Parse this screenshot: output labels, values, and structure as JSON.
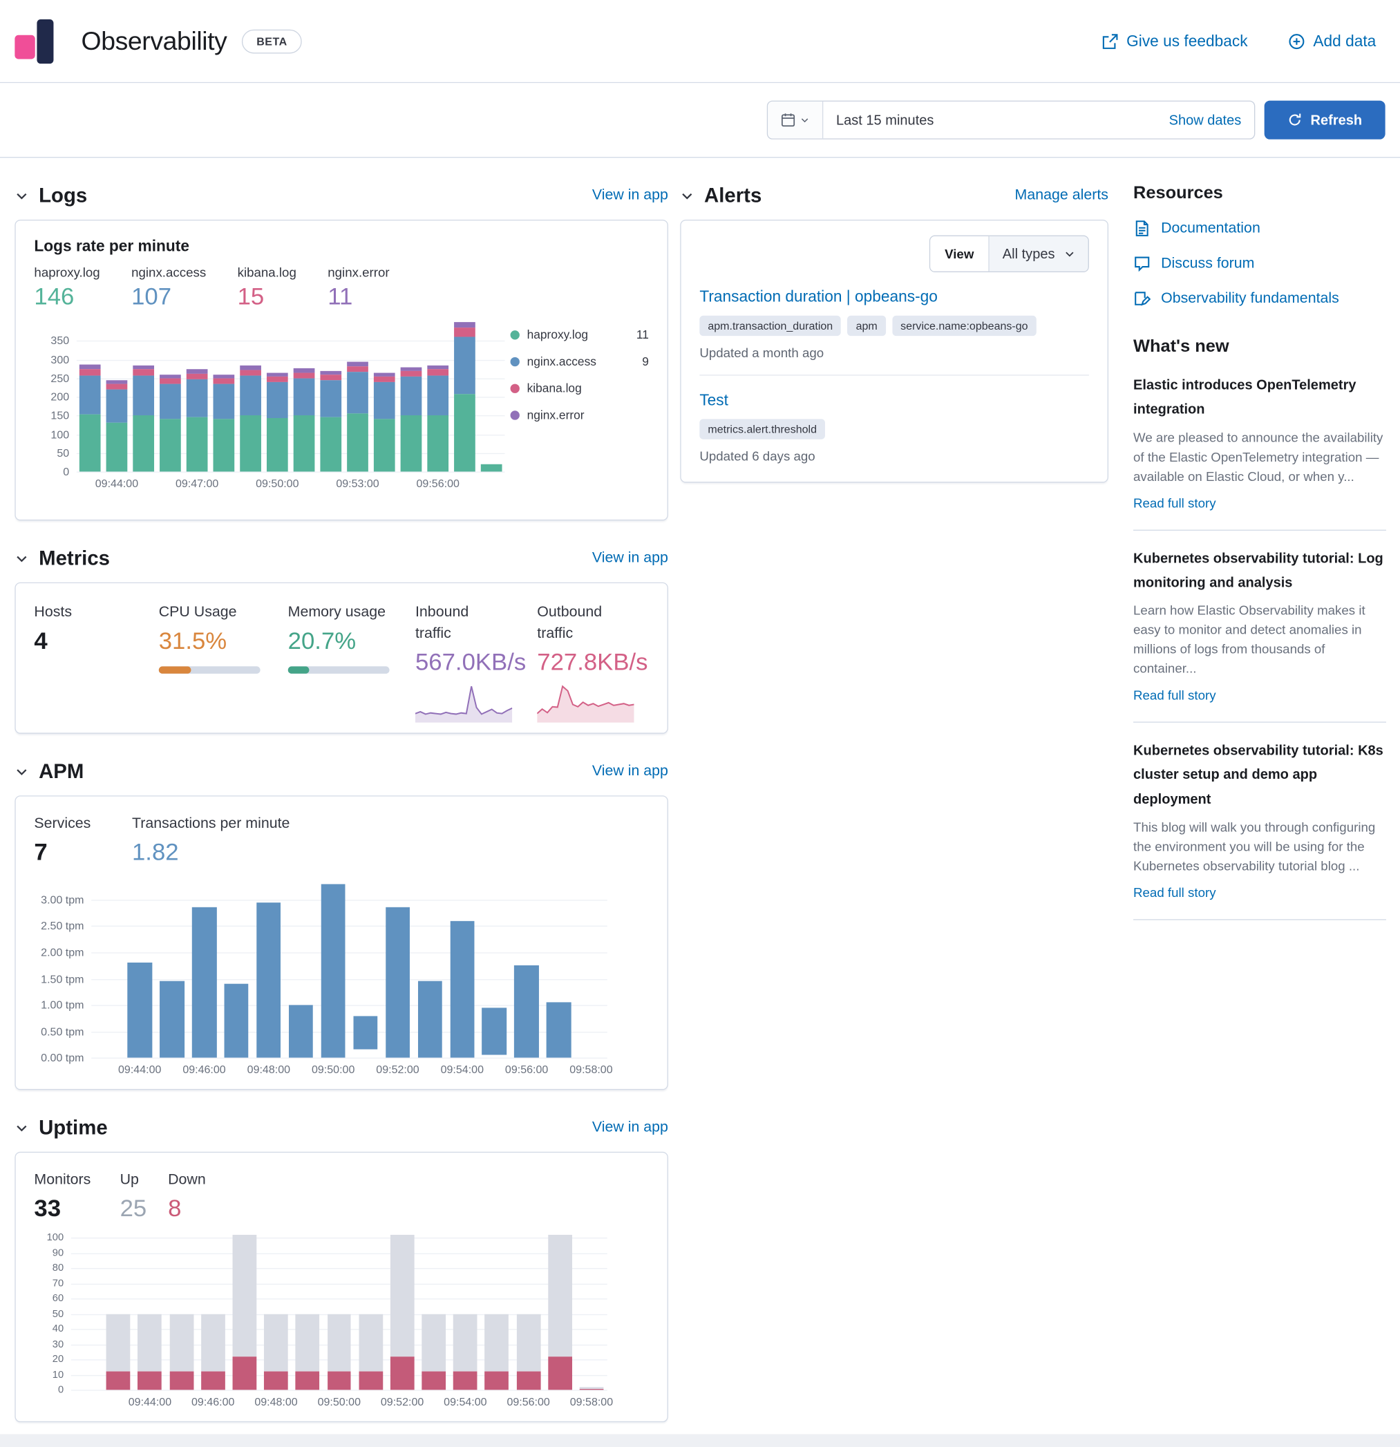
{
  "colors": {
    "link": "#006BB4",
    "primary_button": "#2B6CBF",
    "text": "#343741",
    "heading": "#1A1C21",
    "subdued": "#69707D",
    "border": "#D3DAE6"
  },
  "header": {
    "app_title": "Observability",
    "beta_badge": "BETA",
    "feedback_link": "Give us feedback",
    "add_data_link": "Add data"
  },
  "toolbar": {
    "time_range_value": "Last 15 minutes",
    "show_dates_link": "Show dates",
    "refresh_button": "Refresh"
  },
  "logs": {
    "section_title": "Logs",
    "view_in_app": "View in app",
    "panel_title": "Logs rate per minute",
    "stats": [
      {
        "label": "haproxy.log",
        "value": "146",
        "color": "#54B399"
      },
      {
        "label": "nginx.access",
        "value": "107",
        "color": "#6092C0"
      },
      {
        "label": "kibana.log",
        "value": "15",
        "color": "#D36086"
      },
      {
        "label": "nginx.error",
        "value": "11",
        "color": "#9170B8"
      }
    ],
    "legend": [
      {
        "label": "haproxy.log",
        "value": "11",
        "color": "#54B399"
      },
      {
        "label": "nginx.access",
        "value": "9",
        "color": "#6092C0"
      },
      {
        "label": "kibana.log",
        "value": "",
        "color": "#D36086"
      },
      {
        "label": "nginx.error",
        "value": "",
        "color": "#9170B8"
      }
    ]
  },
  "metrics": {
    "section_title": "Metrics",
    "view_in_app": "View in app",
    "stats": [
      {
        "label": "Hosts",
        "value": "4",
        "color": "#1A1C21"
      },
      {
        "label": "CPU Usage",
        "value": "31.5%",
        "color": "#D9863D",
        "percent": 31.5
      },
      {
        "label": "Memory usage",
        "value": "20.7%",
        "color": "#44A488",
        "percent": 20.7
      },
      {
        "label": "Inbound traffic",
        "value": "567.0KB/s",
        "color": "#9170B8"
      },
      {
        "label": "Outbound traffic",
        "value": "727.8KB/s",
        "color": "#D36086"
      }
    ]
  },
  "apm": {
    "section_title": "APM",
    "view_in_app": "View in app",
    "services_label": "Services",
    "services_value": "7",
    "tpm_label": "Transactions per minute",
    "tpm_value": "1.82",
    "tpm_color": "#6092C0"
  },
  "uptime": {
    "section_title": "Uptime",
    "view_in_app": "View in app",
    "stats": [
      {
        "label": "Monitors",
        "value": "33",
        "color": "#1A1C21"
      },
      {
        "label": "Up",
        "value": "25",
        "color": "#9BA5B2"
      },
      {
        "label": "Down",
        "value": "8",
        "color": "#CB5B78"
      }
    ]
  },
  "alerts": {
    "section_title": "Alerts",
    "manage_link": "Manage alerts",
    "view_label": "View",
    "type_filter": "All types",
    "items": [
      {
        "title": "Transaction duration | opbeans-go",
        "tags": [
          "apm.transaction_duration",
          "apm",
          "service.name:opbeans-go"
        ],
        "updated": "Updated a month ago"
      },
      {
        "title": "Test",
        "tags": [
          "metrics.alert.threshold"
        ],
        "updated": "Updated 6 days ago"
      }
    ]
  },
  "resources": {
    "title": "Resources",
    "links": [
      {
        "label": "Documentation"
      },
      {
        "label": "Discuss forum"
      },
      {
        "label": "Observability fundamentals"
      }
    ]
  },
  "whats_new": {
    "title": "What's new",
    "read_more": "Read full story",
    "stories": [
      {
        "title": "Elastic introduces OpenTelemetry integration",
        "body": "We are pleased to announce the availability of the Elastic OpenTelemetry integration — available on Elastic Cloud, or when y..."
      },
      {
        "title": "Kubernetes observability tutorial: Log monitoring and analysis",
        "body": "Learn how Elastic Observability makes it easy to monitor and detect anomalies in millions of logs from thousands of container..."
      },
      {
        "title": "Kubernetes observability tutorial: K8s cluster setup and demo app deployment",
        "body": "This blog will walk you through configuring the environment you will be using for the Kubernetes observability tutorial blog ..."
      }
    ]
  },
  "chart_data": [
    {
      "id": "logs-rate",
      "type": "bar",
      "stacked": true,
      "title": "Logs rate per minute",
      "ymax": 410,
      "yticks": [
        {
          "v": 0,
          "label": "0"
        },
        {
          "v": 50,
          "label": "50"
        },
        {
          "v": 100,
          "label": "100"
        },
        {
          "v": 150,
          "label": "150"
        },
        {
          "v": 200,
          "label": "200"
        },
        {
          "v": 250,
          "label": "250"
        },
        {
          "v": 300,
          "label": "300"
        },
        {
          "v": 350,
          "label": "350"
        }
      ],
      "xtick_labels": [
        "09:44:00",
        "09:47:00",
        "09:50:00",
        "09:53:00",
        "09:56:00"
      ],
      "xtick_index": [
        1,
        4,
        7,
        10,
        13
      ],
      "series": [
        {
          "name": "haproxy.log",
          "color": "#54B399",
          "values": [
            152,
            132,
            150,
            140,
            146,
            140,
            150,
            144,
            150,
            146,
            156,
            142,
            150,
            150,
            208,
            20
          ]
        },
        {
          "name": "nginx.access",
          "color": "#6092C0",
          "values": [
            105,
            88,
            108,
            94,
            102,
            94,
            106,
            96,
            100,
            98,
            110,
            98,
            104,
            108,
            152,
            0
          ]
        },
        {
          "name": "kibana.log",
          "color": "#D36086",
          "values": [
            18,
            15,
            16,
            15,
            15,
            15,
            16,
            15,
            15,
            15,
            16,
            15,
            15,
            15,
            25,
            0
          ]
        },
        {
          "name": "nginx.error",
          "color": "#9170B8",
          "values": [
            12,
            10,
            11,
            10,
            11,
            11,
            12,
            10,
            11,
            10,
            12,
            10,
            11,
            11,
            16,
            0
          ]
        }
      ]
    },
    {
      "id": "apm-tpm",
      "type": "bar",
      "stacked": false,
      "title": "Transactions per minute",
      "ymax": 3.45,
      "yticks": [
        {
          "v": 0,
          "label": "0.00 tpm"
        },
        {
          "v": 0.5,
          "label": "0.50 tpm"
        },
        {
          "v": 1,
          "label": "1.00 tpm"
        },
        {
          "v": 1.5,
          "label": "1.50 tpm"
        },
        {
          "v": 2,
          "label": "2.00 tpm"
        },
        {
          "v": 2.5,
          "label": "2.50 tpm"
        },
        {
          "v": 3,
          "label": "3.00 tpm"
        }
      ],
      "xtick_labels": [
        "09:44:00",
        "09:46:00",
        "09:48:00",
        "09:50:00",
        "09:52:00",
        "09:54:00",
        "09:56:00",
        "09:58:00"
      ],
      "xtick_index": [
        1,
        3,
        5,
        7,
        9,
        11,
        13,
        15
      ],
      "series": [
        {
          "name": "Transactions per minute",
          "color": "#6092C0",
          "values": [
            0,
            1.8,
            1.45,
            2.85,
            1.4,
            2.95,
            1.0,
            3.3,
            0.8,
            2.85,
            1.45,
            2.6,
            0.95,
            1.75,
            1.05,
            0
          ]
        }
      ]
    },
    {
      "id": "uptime-monitors",
      "type": "bar",
      "stacked": true,
      "title": "Monitors up / down",
      "ymax": 105,
      "yticks": [
        {
          "v": 0,
          "label": "0"
        },
        {
          "v": 10,
          "label": "10"
        },
        {
          "v": 20,
          "label": "20"
        },
        {
          "v": 30,
          "label": "30"
        },
        {
          "v": 40,
          "label": "40"
        },
        {
          "v": 50,
          "label": "50"
        },
        {
          "v": 60,
          "label": "60"
        },
        {
          "v": 70,
          "label": "70"
        },
        {
          "v": 80,
          "label": "80"
        },
        {
          "v": 90,
          "label": "90"
        },
        {
          "v": 100,
          "label": "100"
        }
      ],
      "xtick_labels": [
        "09:44:00",
        "09:46:00",
        "09:48:00",
        "09:50:00",
        "09:52:00",
        "09:54:00",
        "09:56:00",
        "09:58:00"
      ],
      "xtick_index": [
        2,
        4,
        6,
        8,
        10,
        12,
        14,
        16
      ],
      "series": [
        {
          "name": "Down",
          "color": "#C45B79",
          "values": [
            0,
            12,
            12,
            12,
            12,
            22,
            12,
            12,
            12,
            12,
            22,
            12,
            12,
            12,
            12,
            22,
            1
          ]
        },
        {
          "name": "Up",
          "color": "#D9DCE4",
          "values": [
            0,
            38,
            38,
            38,
            38,
            80,
            38,
            38,
            38,
            38,
            80,
            38,
            38,
            38,
            38,
            80,
            1
          ]
        }
      ]
    },
    {
      "id": "inbound-traffic",
      "type": "area",
      "title": "Inbound traffic",
      "unit": "KB/s",
      "color": "#9170B8",
      "values": [
        15,
        18,
        14,
        16,
        15,
        14,
        17,
        15,
        14,
        16,
        15,
        60,
        25,
        14,
        18,
        22,
        16,
        15,
        20,
        24
      ]
    },
    {
      "id": "outbound-traffic",
      "type": "area",
      "title": "Outbound traffic",
      "unit": "KB/s",
      "color": "#D36086",
      "values": [
        20,
        30,
        22,
        35,
        34,
        80,
        70,
        40,
        35,
        45,
        38,
        42,
        36,
        40,
        44,
        38,
        40,
        42,
        38,
        40
      ]
    }
  ]
}
